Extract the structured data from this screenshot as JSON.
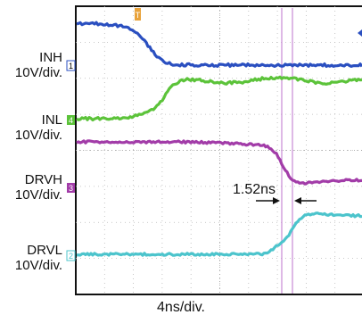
{
  "channels": [
    {
      "id": "1",
      "name": "INH",
      "scale": "10V/div.",
      "color": "#2a4fc0"
    },
    {
      "id": "4",
      "name": "INL",
      "scale": "10V/div.",
      "color": "#5cc33a"
    },
    {
      "id": "3",
      "name": "DRVH",
      "scale": "10V/div.",
      "color": "#a23ca8"
    },
    {
      "id": "2",
      "name": "DRVL",
      "scale": "10V/div.",
      "color": "#4cc4cc"
    }
  ],
  "measurement": {
    "text": "1.52ns"
  },
  "timebase": "4ns/div.",
  "chart_data": {
    "type": "line",
    "xlabel": "4ns/div.",
    "annotation": "1.52ns",
    "series": [
      {
        "name": "INH",
        "scale": "10V/div."
      },
      {
        "name": "INL",
        "scale": "10V/div."
      },
      {
        "name": "DRVH",
        "scale": "10V/div."
      },
      {
        "name": "DRVL",
        "scale": "10V/div."
      }
    ]
  }
}
